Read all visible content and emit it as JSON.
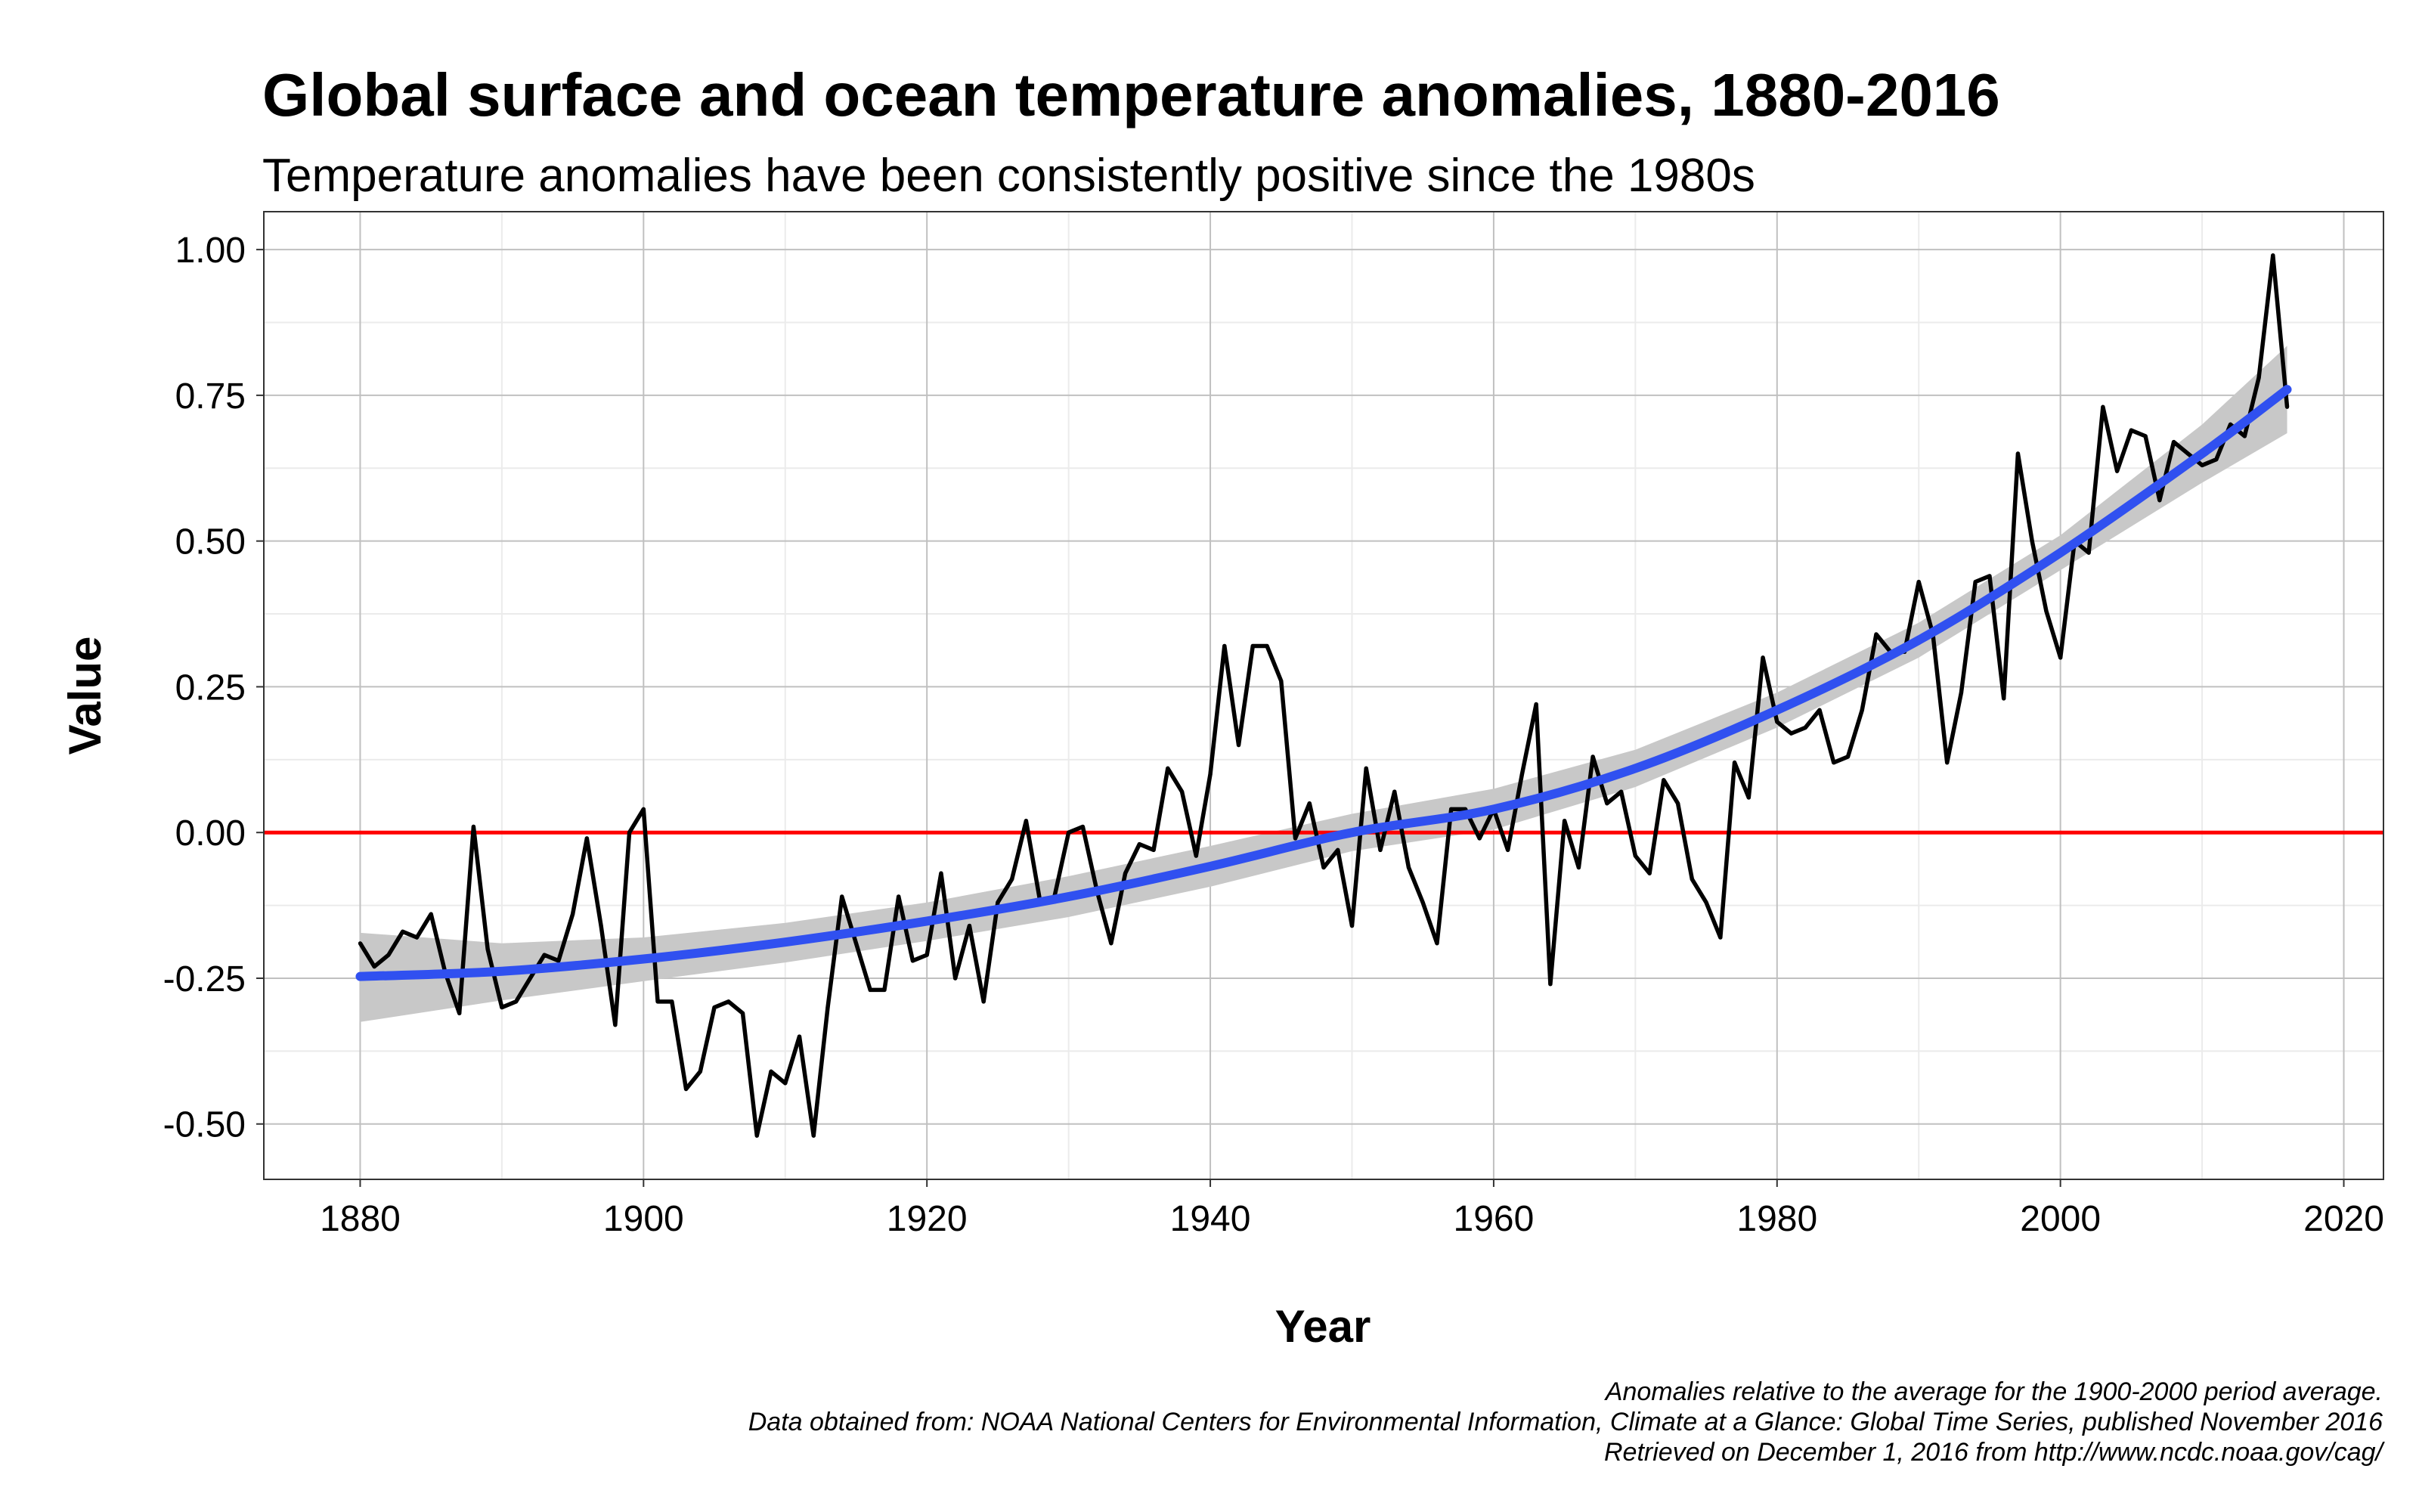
{
  "chart_data": {
    "type": "line",
    "title": "Global surface and ocean temperature anomalies, 1880-2016",
    "subtitle": "Temperature anomalies have been consistently positive since the 1980s",
    "xlabel": "Year",
    "ylabel": "Value",
    "xlim": [
      1873.2,
      2022.8
    ],
    "ylim": [
      -0.595,
      1.065
    ],
    "x_ticks": [
      1880,
      1900,
      1920,
      1940,
      1960,
      1980,
      2000,
      2020
    ],
    "y_ticks": [
      -0.5,
      -0.25,
      0,
      0.25,
      0.5,
      0.75,
      1
    ],
    "y_tick_labels": [
      "-0.50",
      "-0.25",
      "0.00",
      "0.25",
      "0.50",
      "0.75",
      "1.00"
    ],
    "grid": true,
    "reference_line": 0,
    "colors": {
      "series": "#000000",
      "trend": "#3050f0",
      "band": "#c8c8c8",
      "reference": "#ff0000",
      "grid": "#c0c0c0"
    },
    "series": [
      {
        "x": [
          1880,
          1881,
          1882,
          1883,
          1884,
          1885,
          1886,
          1887,
          1888,
          1889,
          1890,
          1891,
          1892,
          1893,
          1894,
          1895,
          1896,
          1897,
          1898,
          1899,
          1900,
          1901,
          1902,
          1903,
          1904,
          1905,
          1906,
          1907,
          1908,
          1909,
          1910,
          1911,
          1912,
          1913,
          1914,
          1915,
          1916,
          1917,
          1918,
          1919,
          1920,
          1921,
          1922,
          1923,
          1924,
          1925,
          1926,
          1927,
          1928,
          1929,
          1930,
          1931,
          1932,
          1933,
          1934,
          1935,
          1936,
          1937,
          1938,
          1939,
          1940,
          1941,
          1942,
          1943,
          1944,
          1945,
          1946,
          1947,
          1948,
          1949,
          1950,
          1951,
          1952,
          1953,
          1954,
          1955,
          1956,
          1957,
          1958,
          1959,
          1960,
          1961,
          1962,
          1963,
          1964,
          1965,
          1966,
          1967,
          1968,
          1969,
          1970,
          1971,
          1972,
          1973,
          1974,
          1975,
          1976,
          1977,
          1978,
          1979,
          1980,
          1981,
          1982,
          1983,
          1984,
          1985,
          1986,
          1987,
          1988,
          1989,
          1990,
          1991,
          1992,
          1993,
          1994,
          1995,
          1996,
          1997,
          1998,
          1999,
          2000,
          2001,
          2002,
          2003,
          2004,
          2005,
          2006,
          2007,
          2008,
          2009,
          2010,
          2011,
          2012,
          2013,
          2014,
          2015,
          2016
        ],
        "values": [
          -0.19,
          -0.23,
          -0.21,
          -0.17,
          -0.18,
          -0.14,
          -0.24,
          -0.31,
          0.01,
          -0.2,
          -0.3,
          -0.29,
          -0.25,
          -0.21,
          -0.22,
          -0.14,
          -0.01,
          -0.16,
          -0.33,
          0.0,
          0.04,
          -0.29,
          -0.29,
          -0.44,
          -0.41,
          -0.3,
          -0.29,
          -0.31,
          -0.52,
          -0.41,
          -0.43,
          -0.35,
          -0.52,
          -0.3,
          -0.11,
          -0.19,
          -0.27,
          -0.27,
          -0.11,
          -0.22,
          -0.21,
          -0.07,
          -0.25,
          -0.16,
          -0.29,
          -0.12,
          -0.08,
          0.02,
          -0.12,
          -0.11,
          0.0,
          0.01,
          -0.1,
          -0.19,
          -0.07,
          -0.02,
          -0.03,
          0.11,
          0.07,
          -0.04,
          0.1,
          0.32,
          0.15,
          0.32,
          0.32,
          0.26,
          -0.01,
          0.05,
          -0.06,
          -0.03,
          -0.16,
          0.11,
          -0.03,
          0.07,
          -0.06,
          -0.12,
          -0.19,
          0.04,
          0.04,
          -0.01,
          0.04,
          -0.03,
          0.1,
          0.22,
          -0.26,
          0.02,
          -0.06,
          0.13,
          0.05,
          0.07,
          -0.04,
          -0.07,
          0.09,
          0.05,
          -0.08,
          -0.12,
          -0.18,
          0.12,
          0.06,
          0.3,
          0.19,
          0.17,
          0.18,
          0.21,
          0.12,
          0.13,
          0.21,
          0.34,
          0.31,
          0.31,
          0.43,
          0.34,
          0.12,
          0.24,
          0.43,
          0.44,
          0.23,
          0.65,
          0.5,
          0.38,
          0.3,
          0.5,
          0.48,
          0.73,
          0.62,
          0.69,
          0.68,
          0.57,
          0.67,
          0.65,
          0.63,
          0.64,
          0.7,
          0.68,
          0.78,
          0.99,
          0.73
        ]
      }
    ],
    "trend": {
      "x": [
        1880,
        1890,
        1900,
        1910,
        1920,
        1930,
        1940,
        1950,
        1960,
        1970,
        1980,
        1990,
        2000,
        2010,
        2016
      ],
      "values": [
        -0.247,
        -0.238,
        -0.217,
        -0.188,
        -0.152,
        -0.11,
        -0.058,
        0.0,
        0.04,
        0.11,
        0.21,
        0.33,
        0.48,
        0.65,
        0.76
      ],
      "lower": [
        -0.325,
        -0.288,
        -0.255,
        -0.223,
        -0.186,
        -0.145,
        -0.093,
        -0.032,
        0.005,
        0.078,
        0.18,
        0.3,
        0.45,
        0.6,
        0.685
      ],
      "upper": [
        -0.172,
        -0.19,
        -0.18,
        -0.155,
        -0.12,
        -0.075,
        -0.023,
        0.032,
        0.075,
        0.142,
        0.24,
        0.36,
        0.51,
        0.7,
        0.835
      ]
    },
    "caption": [
      "Anomalies relative to the average for the 1900-2000 period average.",
      "Data obtained from: NOAA National Centers for Environmental Information, Climate at a Glance: Global Time Series, published November 2016",
      "Retrieved on December 1, 2016 from http://www.ncdc.noaa.gov/cag/"
    ]
  }
}
